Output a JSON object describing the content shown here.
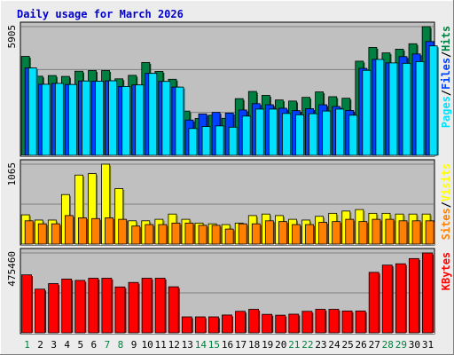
{
  "chart_data": {
    "type": "bar",
    "title": "Daily usage for March 2026",
    "colors": {
      "background": "#ececec",
      "plot": "#c0c0c0",
      "title": "#0000cc",
      "hits": "#008040",
      "files": "#0040ff",
      "pages": "#00e0ff",
      "visits": "#ffff00",
      "sites": "#ff8000",
      "kbytes": "#ff0000",
      "weekend_day": "#008040",
      "weekday": "#000000"
    },
    "categories": [
      "1",
      "2",
      "3",
      "4",
      "5",
      "6",
      "7",
      "8",
      "9",
      "10",
      "11",
      "12",
      "13",
      "14",
      "15",
      "16",
      "17",
      "18",
      "19",
      "20",
      "21",
      "22",
      "23",
      "24",
      "25",
      "26",
      "27",
      "28",
      "29",
      "30",
      "31"
    ],
    "weekend_days": [
      "1",
      "7",
      "8",
      "14",
      "15",
      "21",
      "22",
      "28",
      "29"
    ],
    "panels": [
      {
        "id": "hits-files-pages",
        "max_label": "5905",
        "ymax": 5905,
        "legend": [
          "Pages",
          "Files",
          "Hits"
        ],
        "series": [
          {
            "name": "Hits",
            "color_key": "hits",
            "values": [
              4540,
              3630,
              3660,
              3620,
              3860,
              3890,
              3890,
              3510,
              3670,
              4260,
              3850,
              3490,
              2030,
              1690,
              1840,
              1700,
              2600,
              2930,
              2750,
              2540,
              2490,
              2660,
              2910,
              2690,
              2620,
              4320,
              4950,
              4700,
              4870,
              5120,
              5905
            ]
          },
          {
            "name": "Files",
            "color_key": "files",
            "values": [
              4010,
              3260,
              3300,
              3250,
              3410,
              3400,
              3420,
              3160,
              3230,
              3760,
              3390,
              3130,
              1620,
              1900,
              1970,
              1940,
              2080,
              2370,
              2320,
              2160,
              2050,
              2140,
              2320,
              2240,
              2060,
              3990,
              4400,
              4240,
              4530,
              4650,
              5220
            ]
          },
          {
            "name": "Pages",
            "color_key": "pages",
            "values": [
              4010,
              3260,
              3300,
              3250,
              3410,
              3400,
              3420,
              3160,
              3230,
              3760,
              3390,
              3130,
              1230,
              1320,
              1350,
              1290,
              1800,
              2120,
              2120,
              1920,
              1860,
              1910,
              2030,
              2120,
              1840,
              3900,
              4400,
              4240,
              4220,
              4300,
              5020
            ]
          }
        ]
      },
      {
        "id": "visits-sites",
        "max_label": "1065",
        "ymax": 1065,
        "legend": [
          "Sites",
          "Visits"
        ],
        "series": [
          {
            "name": "Visits",
            "color_key": "visits",
            "values": [
              390,
              320,
              320,
              660,
              920,
              940,
              1065,
              740,
              310,
              310,
              330,
              400,
              330,
              280,
              270,
              260,
              280,
              380,
              400,
              380,
              330,
              320,
              370,
              410,
              440,
              460,
              410,
              410,
              400,
              400,
              400
            ]
          },
          {
            "name": "Sites",
            "color_key": "sites",
            "values": [
              310,
              270,
              270,
              380,
              350,
              340,
              350,
              330,
              240,
              260,
              260,
              280,
              280,
              250,
              250,
              200,
              270,
              270,
              310,
              300,
              260,
              260,
              290,
              300,
              330,
              300,
              330,
              330,
              310,
              310,
              310
            ]
          }
        ]
      },
      {
        "id": "kbytes",
        "max_label": "475460",
        "ymax": 475460,
        "legend": [
          "KBytes"
        ],
        "series": [
          {
            "name": "KBytes",
            "color_key": "kbytes",
            "values": [
              345000,
              260000,
              293000,
              320000,
              312000,
              325000,
              325000,
              273000,
              300000,
              325000,
              325000,
              274000,
              95000,
              95000,
              95000,
              106000,
              128000,
              140000,
              110000,
              105000,
              111000,
              128000,
              140000,
              140000,
              130000,
              130000,
              360000,
              403000,
              411000,
              442000,
              475460
            ]
          }
        ]
      }
    ]
  }
}
